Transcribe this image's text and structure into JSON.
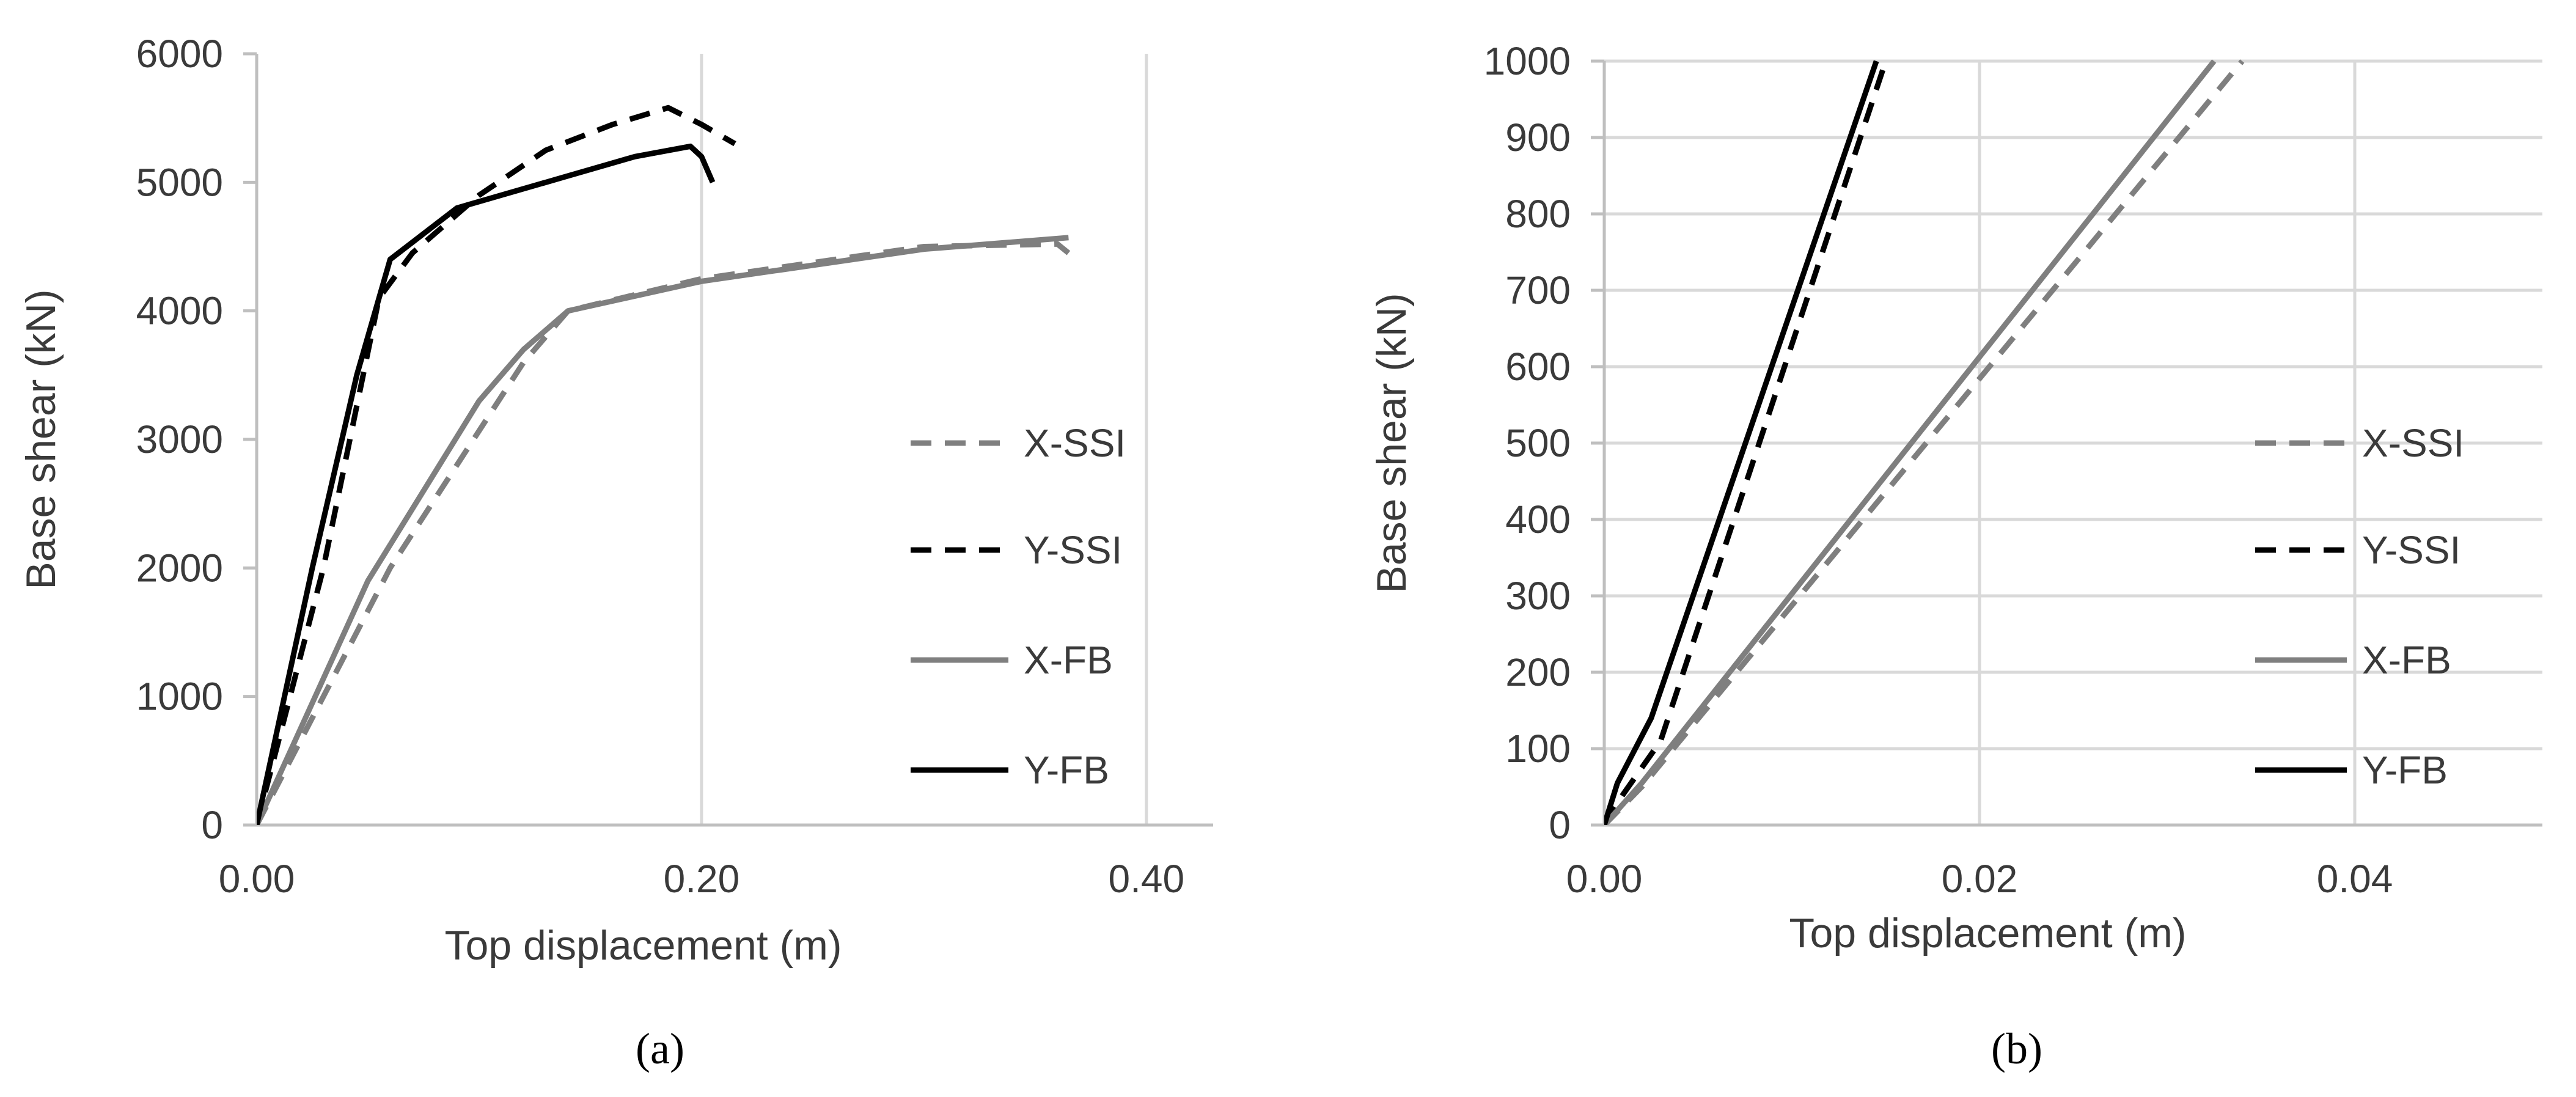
{
  "chart_data": [
    {
      "type": "line",
      "panel_label": "(a)",
      "xlabel": "Top displacement (m)",
      "ylabel": "Base shear (kN)",
      "xlim": [
        0,
        0.43
      ],
      "ylim": [
        0,
        6000
      ],
      "xticks": [
        0,
        0.2,
        0.4
      ],
      "xtick_labels": [
        "0.00",
        "0.20",
        "0.40"
      ],
      "yticks": [
        0,
        1000,
        2000,
        3000,
        4000,
        5000,
        6000
      ],
      "ytick_labels": [
        "0",
        "1000",
        "2000",
        "3000",
        "4000",
        "5000",
        "6000"
      ],
      "grid": "vertical",
      "legend_position": "right",
      "series": [
        {
          "name": "X-SSI",
          "color": "#7f7f7f",
          "dash": "dashed",
          "x": [
            0,
            0.06,
            0.12,
            0.14,
            0.2,
            0.3,
            0.36,
            0.365
          ],
          "y": [
            0,
            2000,
            3600,
            4000,
            4250,
            4500,
            4520,
            4450
          ]
        },
        {
          "name": "Y-SSI",
          "color": "#000000",
          "dash": "dashed",
          "x": [
            0,
            0.03,
            0.055,
            0.07,
            0.1,
            0.13,
            0.16,
            0.185,
            0.2,
            0.215
          ],
          "y": [
            0,
            2000,
            4100,
            4450,
            4900,
            5250,
            5450,
            5580,
            5450,
            5300
          ]
        },
        {
          "name": "X-FB",
          "color": "#7f7f7f",
          "dash": "solid",
          "x": [
            0,
            0.05,
            0.1,
            0.12,
            0.14,
            0.2,
            0.3,
            0.365
          ],
          "y": [
            0,
            1900,
            3300,
            3700,
            4000,
            4230,
            4480,
            4570
          ]
        },
        {
          "name": "Y-FB",
          "color": "#000000",
          "dash": "solid",
          "x": [
            0,
            0.025,
            0.045,
            0.06,
            0.09,
            0.14,
            0.17,
            0.195,
            0.2,
            0.205
          ],
          "y": [
            0,
            2000,
            3500,
            4400,
            4800,
            5050,
            5200,
            5280,
            5200,
            5000
          ]
        }
      ]
    },
    {
      "type": "line",
      "panel_label": "(b)",
      "xlabel": "Top displacement (m)",
      "ylabel": "Base shear (kN)",
      "xlim": [
        0,
        0.05
      ],
      "ylim": [
        0,
        1000
      ],
      "xticks": [
        0,
        0.02,
        0.04
      ],
      "xtick_labels": [
        "0.00",
        "0.02",
        "0.04"
      ],
      "yticks": [
        0,
        100,
        200,
        300,
        400,
        500,
        600,
        700,
        800,
        900,
        1000
      ],
      "ytick_labels": [
        "0",
        "100",
        "200",
        "300",
        "400",
        "500",
        "600",
        "700",
        "800",
        "900",
        "1000"
      ],
      "grid": "both",
      "legend_position": "right",
      "series": [
        {
          "name": "X-SSI",
          "color": "#7f7f7f",
          "dash": "dashed",
          "x": [
            0,
            0.002,
            0.034
          ],
          "y": [
            0,
            50,
            1000
          ]
        },
        {
          "name": "Y-SSI",
          "color": "#000000",
          "dash": "dashed",
          "x": [
            0,
            0.001,
            0.003,
            0.015
          ],
          "y": [
            0,
            40,
            110,
            1000
          ]
        },
        {
          "name": "X-FB",
          "color": "#7f7f7f",
          "dash": "solid",
          "x": [
            0,
            0.002,
            0.0325
          ],
          "y": [
            0,
            55,
            1000
          ]
        },
        {
          "name": "Y-FB",
          "color": "#000000",
          "dash": "solid",
          "x": [
            0,
            0.0007,
            0.0025,
            0.0145
          ],
          "y": [
            0,
            55,
            140,
            1000
          ]
        }
      ]
    }
  ]
}
